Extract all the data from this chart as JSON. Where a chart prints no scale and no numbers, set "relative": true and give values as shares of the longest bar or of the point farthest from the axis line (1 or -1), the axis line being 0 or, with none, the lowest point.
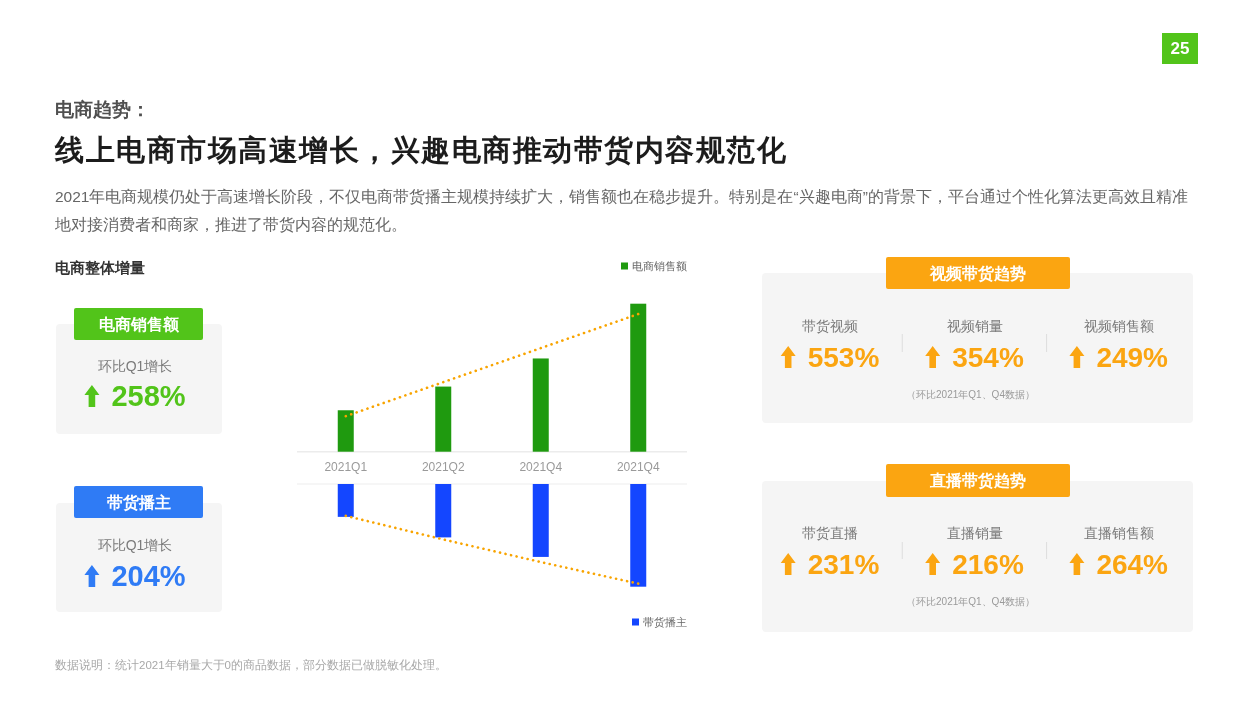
{
  "chart_data": [
    {
      "type": "other",
      "title": "电商趋势：",
      "subtitle": "线上电商市场高速增长，兴趣电商推动带货内容规范化",
      "annotations": [
        "2021年电商规模仍处于高速增长阶段，不仅电商带货播主规模持续扩大，销售额也在稳步提升。特别是在“兴趣电商”的背景下，平台通过个性化算法更高效且精准地对接消费者和商家，推进了带货内容的规范化。",
        "数据说明：统计2021年销量大于0的商品数据，部分数据已做脱敏化处理。",
        "25",
        "电商整体增量"
      ]
    },
    {
      "type": "bar",
      "categories": [
        "2021Q1",
        "2021Q2",
        "2021Q4",
        "2021Q4"
      ],
      "relative": true,
      "legend": "top right",
      "line_style": "dotted",
      "series": [
        {
          "name": "电商销售额",
          "color": "#1f9a0f",
          "values": [
            0.28,
            0.44,
            0.63,
            1
          ]
        },
        {
          "type": "line",
          "color": "#f8a400",
          "values": [
            0.24,
            0.47,
            0.7,
            0.93
          ]
        }
      ]
    },
    {
      "type": "bar",
      "categories": [
        null,
        null,
        null,
        null
      ],
      "relative": true,
      "legend": "bottom right",
      "line_style": "dotted",
      "series": [
        {
          "name": "带货播主",
          "color": "#1446ff",
          "values": [
            -0.32,
            -0.52,
            -0.71,
            -1
          ]
        },
        {
          "type": "line",
          "color": "#f8a400",
          "values": [
            -0.31,
            -0.54,
            -0.76,
            -0.97
          ]
        }
      ]
    },
    {
      "type": "other",
      "title": "电商销售额",
      "categories": [
        "环比Q1增长"
      ],
      "value_labels": [
        "258%"
      ],
      "color": "#52c41a"
    },
    {
      "type": "other",
      "title": "带货播主",
      "categories": [
        "环比Q1增长"
      ],
      "value_labels": [
        "204%"
      ],
      "color": "#2f7bf5"
    },
    {
      "type": "other",
      "title": "视频带货趋势",
      "categories": [
        "带货视频",
        "视频销量",
        "视频销售额"
      ],
      "value_labels": [
        "553%",
        "354%",
        "249%"
      ],
      "color": "#fba511",
      "annotations": [
        "（环比2021年Q1、Q4数据）"
      ]
    },
    {
      "type": "other",
      "title": "直播带货趋势",
      "categories": [
        "带货直播",
        "直播销量",
        "直播销售额"
      ],
      "value_labels": [
        "231%",
        "216%",
        "264%"
      ],
      "color": "#fba511",
      "annotations": [
        "（环比2021年Q1、Q4数据）"
      ]
    }
  ]
}
